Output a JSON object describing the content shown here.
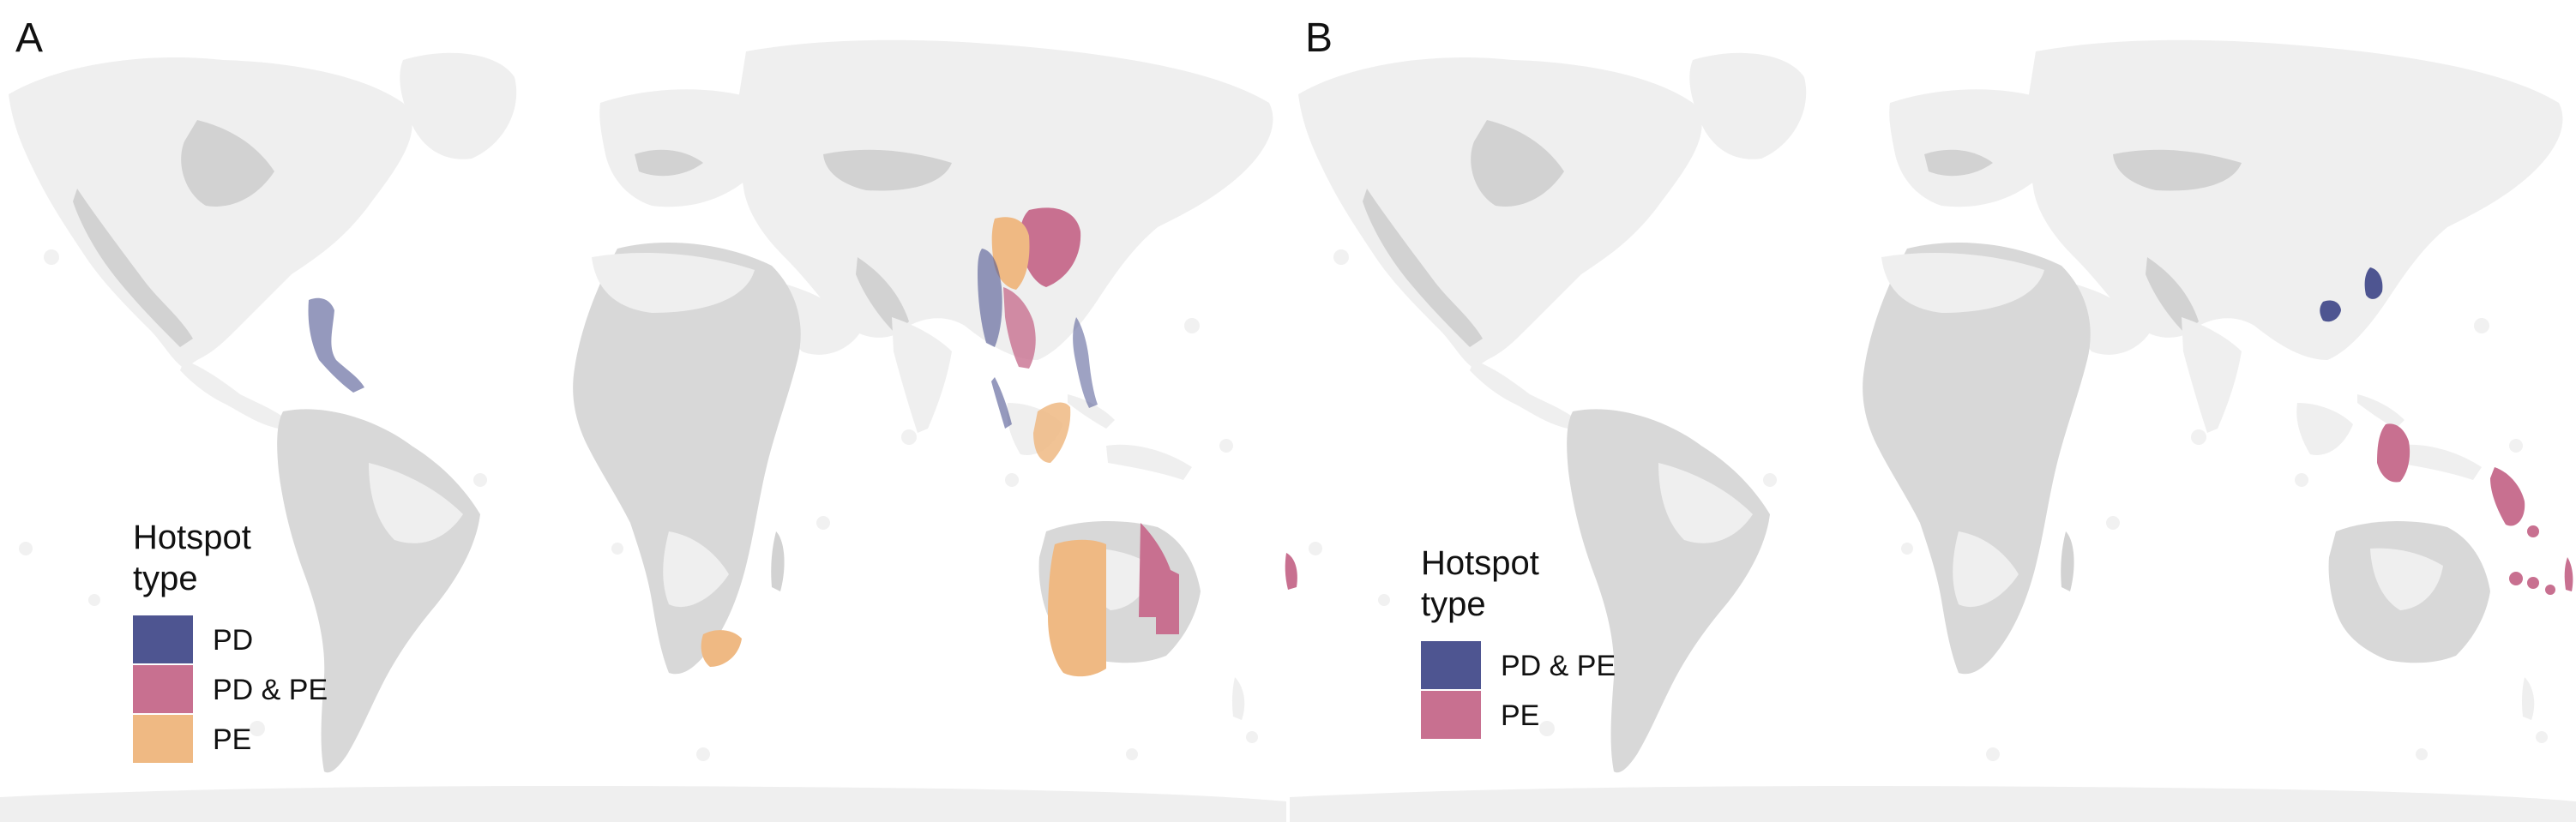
{
  "colors": {
    "ocean_background": "#ffffff",
    "land_light": "#efefef",
    "land_dark": "#d2d2d2",
    "PD": "#4e5591",
    "PD & PE": "#c87090",
    "PE": "#efb983"
  },
  "panels": [
    {
      "letter": "A",
      "legend": {
        "title_line1": "Hotspot",
        "title_line2": "type",
        "entries": [
          {
            "label": "PD",
            "color_key": "PD"
          },
          {
            "label": "PD & PE",
            "color_key": "PD & PE"
          },
          {
            "label": "PE",
            "color_key": "PE"
          }
        ]
      },
      "hotspots": [
        {
          "region": "Central America / southern Mexico",
          "type": "PD"
        },
        {
          "region": "Southern China (east)",
          "type": "PD & PE"
        },
        {
          "region": "Southern China (west) / Yunnan",
          "type": "PE"
        },
        {
          "region": "Myanmar / Thailand",
          "type": "PD"
        },
        {
          "region": "Indochina",
          "type": "PD & PE"
        },
        {
          "region": "Philippines",
          "type": "PD"
        },
        {
          "region": "Borneo",
          "type": "PE"
        },
        {
          "region": "South Africa (Cape)",
          "type": "PE"
        },
        {
          "region": "Western Australia",
          "type": "PE"
        },
        {
          "region": "Queensland",
          "type": "PD & PE"
        },
        {
          "region": "New Caledonia",
          "type": "PD & PE"
        }
      ]
    },
    {
      "letter": "B",
      "legend": {
        "title_line1": "Hotspot",
        "title_line2": "type",
        "entries": [
          {
            "label": "PD & PE",
            "color_key": "PD"
          },
          {
            "label": "PE",
            "color_key": "PD & PE"
          }
        ]
      },
      "hotspots": [
        {
          "region": "Hainan",
          "type": "PD & PE"
        },
        {
          "region": "Taiwan",
          "type": "PD & PE"
        },
        {
          "region": "Sulawesi",
          "type": "PE"
        },
        {
          "region": "New Guinea",
          "type": "PE"
        },
        {
          "region": "Solomon Islands",
          "type": "PE"
        },
        {
          "region": "Vanuatu / New Caledonia",
          "type": "PE"
        }
      ]
    }
  ]
}
